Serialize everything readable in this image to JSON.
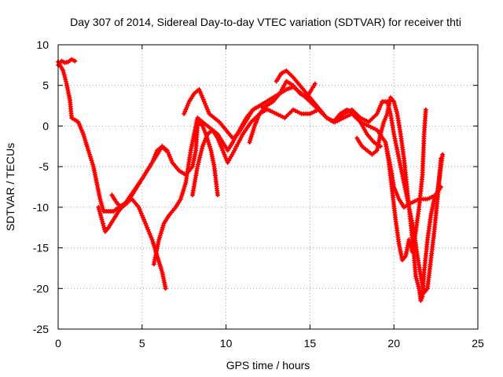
{
  "chart_data": {
    "type": "scatter",
    "title": "Day 307 of 2014, Sidereal Day-to-day VTEC variation (SDTVAR) for receiver thti",
    "xlabel": "GPS time / hours",
    "ylabel": "SDTVAR / TECUs",
    "xlim": [
      0,
      25
    ],
    "ylim": [
      -25,
      10
    ],
    "xticks": [
      0,
      5,
      10,
      15,
      20,
      25
    ],
    "yticks": [
      -25,
      -20,
      -15,
      -10,
      -5,
      0,
      5,
      10
    ],
    "grid": true,
    "marker": "plus",
    "color": "#ff0000",
    "series": [
      {
        "points": [
          [
            0.0,
            7.5
          ],
          [
            0.2,
            8.0
          ],
          [
            0.4,
            7.8
          ],
          [
            0.6,
            7.9
          ],
          [
            0.8,
            8.2
          ],
          [
            1.0,
            8.0
          ]
        ]
      },
      {
        "points": [
          [
            0.0,
            7.9
          ],
          [
            0.3,
            6.8
          ],
          [
            0.5,
            5.2
          ],
          [
            0.7,
            3.2
          ],
          [
            0.8,
            1.0
          ],
          [
            1.2,
            0.5
          ],
          [
            1.5,
            -1.0
          ],
          [
            1.8,
            -3.0
          ],
          [
            2.1,
            -5.0
          ],
          [
            2.3,
            -7.0
          ],
          [
            2.5,
            -9.0
          ],
          [
            2.7,
            -10.5
          ],
          [
            3.0,
            -10.5
          ],
          [
            3.3,
            -10.5
          ],
          [
            3.6,
            -10.0
          ],
          [
            4.0,
            -9.5
          ],
          [
            4.4,
            -9.0
          ],
          [
            4.8,
            -10.0
          ],
          [
            5.2,
            -12.0
          ],
          [
            5.6,
            -14.0
          ],
          [
            5.9,
            -16.0
          ],
          [
            6.2,
            -18.0
          ],
          [
            6.4,
            -20.0
          ]
        ]
      },
      {
        "points": [
          [
            2.4,
            -10.0
          ],
          [
            2.6,
            -11.5
          ],
          [
            2.8,
            -13.0
          ],
          [
            3.0,
            -12.5
          ],
          [
            3.3,
            -11.5
          ],
          [
            3.6,
            -10.5
          ],
          [
            4.0,
            -9.5
          ],
          [
            4.5,
            -8.0
          ],
          [
            5.0,
            -6.5
          ],
          [
            5.3,
            -5.5
          ],
          [
            5.6,
            -4.5
          ],
          [
            5.9,
            -3.0
          ],
          [
            6.2,
            -2.5
          ],
          [
            6.5,
            -3.0
          ],
          [
            6.8,
            -4.5
          ],
          [
            7.2,
            -5.5
          ],
          [
            7.6,
            -6.0
          ],
          [
            8.0,
            -5.0
          ],
          [
            8.2,
            -3.0
          ],
          [
            8.3,
            0.0
          ],
          [
            8.5,
            0.5
          ],
          [
            8.8,
            -1.0
          ],
          [
            9.1,
            -3.0
          ],
          [
            9.3,
            -5.0
          ],
          [
            9.5,
            -8.5
          ]
        ]
      },
      {
        "points": [
          [
            3.2,
            -8.5
          ],
          [
            3.5,
            -9.5
          ],
          [
            3.8,
            -10.0
          ],
          [
            4.1,
            -9.5
          ],
          [
            4.4,
            -8.5
          ],
          [
            4.7,
            -7.5
          ],
          [
            5.0,
            -6.5
          ],
          [
            5.3,
            -5.5
          ],
          [
            5.6,
            -4.5
          ],
          [
            5.9,
            -3.5
          ],
          [
            6.2,
            -2.5
          ],
          [
            6.4,
            -3.0
          ]
        ]
      },
      {
        "points": [
          [
            5.7,
            -17.0
          ],
          [
            6.0,
            -14.0
          ],
          [
            6.3,
            -12.0
          ],
          [
            6.6,
            -11.0
          ],
          [
            7.0,
            -10.0
          ],
          [
            7.3,
            -9.0
          ],
          [
            7.6,
            -7.0
          ],
          [
            7.9,
            -3.0
          ],
          [
            8.1,
            -1.0
          ],
          [
            8.3,
            1.0
          ],
          [
            8.6,
            0.5
          ],
          [
            8.9,
            0.0
          ],
          [
            9.2,
            -0.5
          ],
          [
            9.5,
            -1.0
          ],
          [
            9.8,
            -2.0
          ],
          [
            10.1,
            -3.0
          ],
          [
            10.4,
            -2.0
          ],
          [
            10.8,
            -0.5
          ],
          [
            11.2,
            1.0
          ],
          [
            11.6,
            2.0
          ],
          [
            12.0,
            2.5
          ],
          [
            12.5,
            2.0
          ],
          [
            13.0,
            1.5
          ],
          [
            13.5,
            1.0
          ],
          [
            14.0,
            2.0
          ],
          [
            14.5,
            1.5
          ],
          [
            15.0,
            1.5
          ],
          [
            15.5,
            2.0
          ],
          [
            16.0,
            1.0
          ],
          [
            16.5,
            0.5
          ],
          [
            17.0,
            1.0
          ],
          [
            17.5,
            1.5
          ],
          [
            18.0,
            0.5
          ],
          [
            18.5,
            0.0
          ],
          [
            19.0,
            -0.5
          ],
          [
            19.5,
            -2.0
          ],
          [
            19.8,
            -5.0
          ],
          [
            20.0,
            -7.5
          ],
          [
            20.3,
            -9.0
          ],
          [
            20.6,
            -10.0
          ],
          [
            21.0,
            -9.5
          ],
          [
            21.5,
            -9.0
          ],
          [
            22.0,
            -9.0
          ],
          [
            22.5,
            -8.5
          ],
          [
            22.8,
            -7.5
          ]
        ]
      },
      {
        "points": [
          [
            7.5,
            1.5
          ],
          [
            7.8,
            3.0
          ],
          [
            8.1,
            4.0
          ],
          [
            8.4,
            4.5
          ],
          [
            8.6,
            3.5
          ],
          [
            8.8,
            2.5
          ],
          [
            9.0,
            1.5
          ],
          [
            9.3,
            1.0
          ],
          [
            9.6,
            0.5
          ],
          [
            10.0,
            -0.5
          ],
          [
            10.4,
            -1.5
          ],
          [
            10.7,
            -1.0
          ],
          [
            11.0,
            0.0
          ],
          [
            11.3,
            1.0
          ],
          [
            11.6,
            2.0
          ],
          [
            12.0,
            2.5
          ],
          [
            12.4,
            3.0
          ],
          [
            12.8,
            3.5
          ],
          [
            13.2,
            4.0
          ],
          [
            13.6,
            4.5
          ],
          [
            14.0,
            4.8
          ],
          [
            14.5,
            4.0
          ],
          [
            15.0,
            3.0
          ],
          [
            15.5,
            2.0
          ],
          [
            16.0,
            1.0
          ],
          [
            16.5,
            0.5
          ],
          [
            17.0,
            1.5
          ],
          [
            17.5,
            2.0
          ],
          [
            18.0,
            1.0
          ],
          [
            18.5,
            0.5
          ],
          [
            19.0,
            1.5
          ],
          [
            19.3,
            3.0
          ],
          [
            19.6,
            3.0
          ],
          [
            19.8,
            1.5
          ],
          [
            20.0,
            -1.0
          ],
          [
            20.3,
            -4.0
          ],
          [
            20.6,
            -7.0
          ],
          [
            20.9,
            -10.0
          ],
          [
            21.2,
            -13.0
          ],
          [
            21.4,
            -16.0
          ],
          [
            21.6,
            -18.5
          ],
          [
            21.8,
            -20.5
          ],
          [
            22.0,
            -20.0
          ],
          [
            22.2,
            -16.5
          ],
          [
            22.4,
            -13.0
          ],
          [
            22.5,
            -11.0
          ],
          [
            22.6,
            -9.0
          ],
          [
            22.7,
            -6.5
          ],
          [
            22.8,
            -4.0
          ]
        ]
      },
      {
        "points": [
          [
            8.0,
            -8.5
          ],
          [
            8.3,
            -5.0
          ],
          [
            8.6,
            -2.5
          ],
          [
            8.9,
            -1.0
          ],
          [
            9.2,
            -0.5
          ],
          [
            9.5,
            -1.5
          ],
          [
            9.8,
            -3.0
          ],
          [
            10.1,
            -4.5
          ],
          [
            10.5,
            -3.0
          ],
          [
            11.0,
            -1.0
          ],
          [
            11.5,
            0.5
          ],
          [
            12.0,
            1.5
          ],
          [
            12.4,
            2.0
          ]
        ]
      },
      {
        "points": [
          [
            11.4,
            -2.0
          ],
          [
            11.7,
            0.0
          ],
          [
            12.0,
            1.5
          ],
          [
            12.4,
            2.5
          ],
          [
            12.8,
            3.0
          ],
          [
            13.2,
            4.0
          ],
          [
            13.6,
            5.5
          ],
          [
            14.0,
            5.0
          ],
          [
            14.4,
            4.0
          ],
          [
            14.8,
            3.5
          ],
          [
            15.1,
            4.5
          ],
          [
            15.3,
            5.2
          ]
        ]
      },
      {
        "points": [
          [
            13.0,
            5.5
          ],
          [
            13.3,
            6.5
          ],
          [
            13.6,
            6.8
          ],
          [
            14.0,
            6.0
          ],
          [
            14.4,
            5.0
          ],
          [
            14.8,
            4.0
          ],
          [
            15.2,
            3.0
          ],
          [
            15.6,
            2.0
          ],
          [
            16.0,
            1.0
          ],
          [
            16.4,
            0.5
          ],
          [
            16.8,
            1.5
          ],
          [
            17.2,
            2.0
          ],
          [
            17.6,
            1.5
          ],
          [
            18.0,
            0.5
          ],
          [
            18.4,
            -1.0
          ],
          [
            18.8,
            -2.0
          ],
          [
            19.2,
            -2.5
          ]
        ]
      },
      {
        "points": [
          [
            17.8,
            -1.5
          ],
          [
            18.1,
            -2.5
          ],
          [
            18.4,
            -3.0
          ],
          [
            18.7,
            -3.5
          ],
          [
            19.0,
            -3.0
          ],
          [
            19.2,
            -1.0
          ],
          [
            19.4,
            0.5
          ],
          [
            19.6,
            1.5
          ],
          [
            19.8,
            3.5
          ],
          [
            20.0,
            3.0
          ],
          [
            20.2,
            1.5
          ],
          [
            20.4,
            -1.0
          ],
          [
            20.6,
            -4.0
          ],
          [
            20.8,
            -8.0
          ],
          [
            21.0,
            -12.0
          ],
          [
            21.2,
            -16.0
          ],
          [
            21.3,
            -18.5
          ],
          [
            21.5,
            -20.0
          ],
          [
            21.6,
            -21.5
          ],
          [
            21.7,
            -21.0
          ],
          [
            21.8,
            -18.0
          ],
          [
            22.0,
            -14.0
          ],
          [
            22.2,
            -11.0
          ],
          [
            22.4,
            -9.0
          ],
          [
            22.6,
            -8.0
          ],
          [
            22.8,
            -5.0
          ],
          [
            22.9,
            -3.5
          ]
        ]
      },
      {
        "points": [
          [
            19.5,
            -2.0
          ],
          [
            19.7,
            -4.5
          ],
          [
            19.9,
            -8.0
          ],
          [
            20.1,
            -11.5
          ],
          [
            20.3,
            -14.5
          ],
          [
            20.5,
            -16.5
          ],
          [
            20.7,
            -16.0
          ],
          [
            20.9,
            -14.0
          ],
          [
            21.1,
            -15.5
          ],
          [
            21.3,
            -13.0
          ],
          [
            21.5,
            -10.0
          ],
          [
            21.7,
            -6.0
          ],
          [
            21.8,
            -1.0
          ],
          [
            21.9,
            2.0
          ]
        ]
      }
    ]
  }
}
